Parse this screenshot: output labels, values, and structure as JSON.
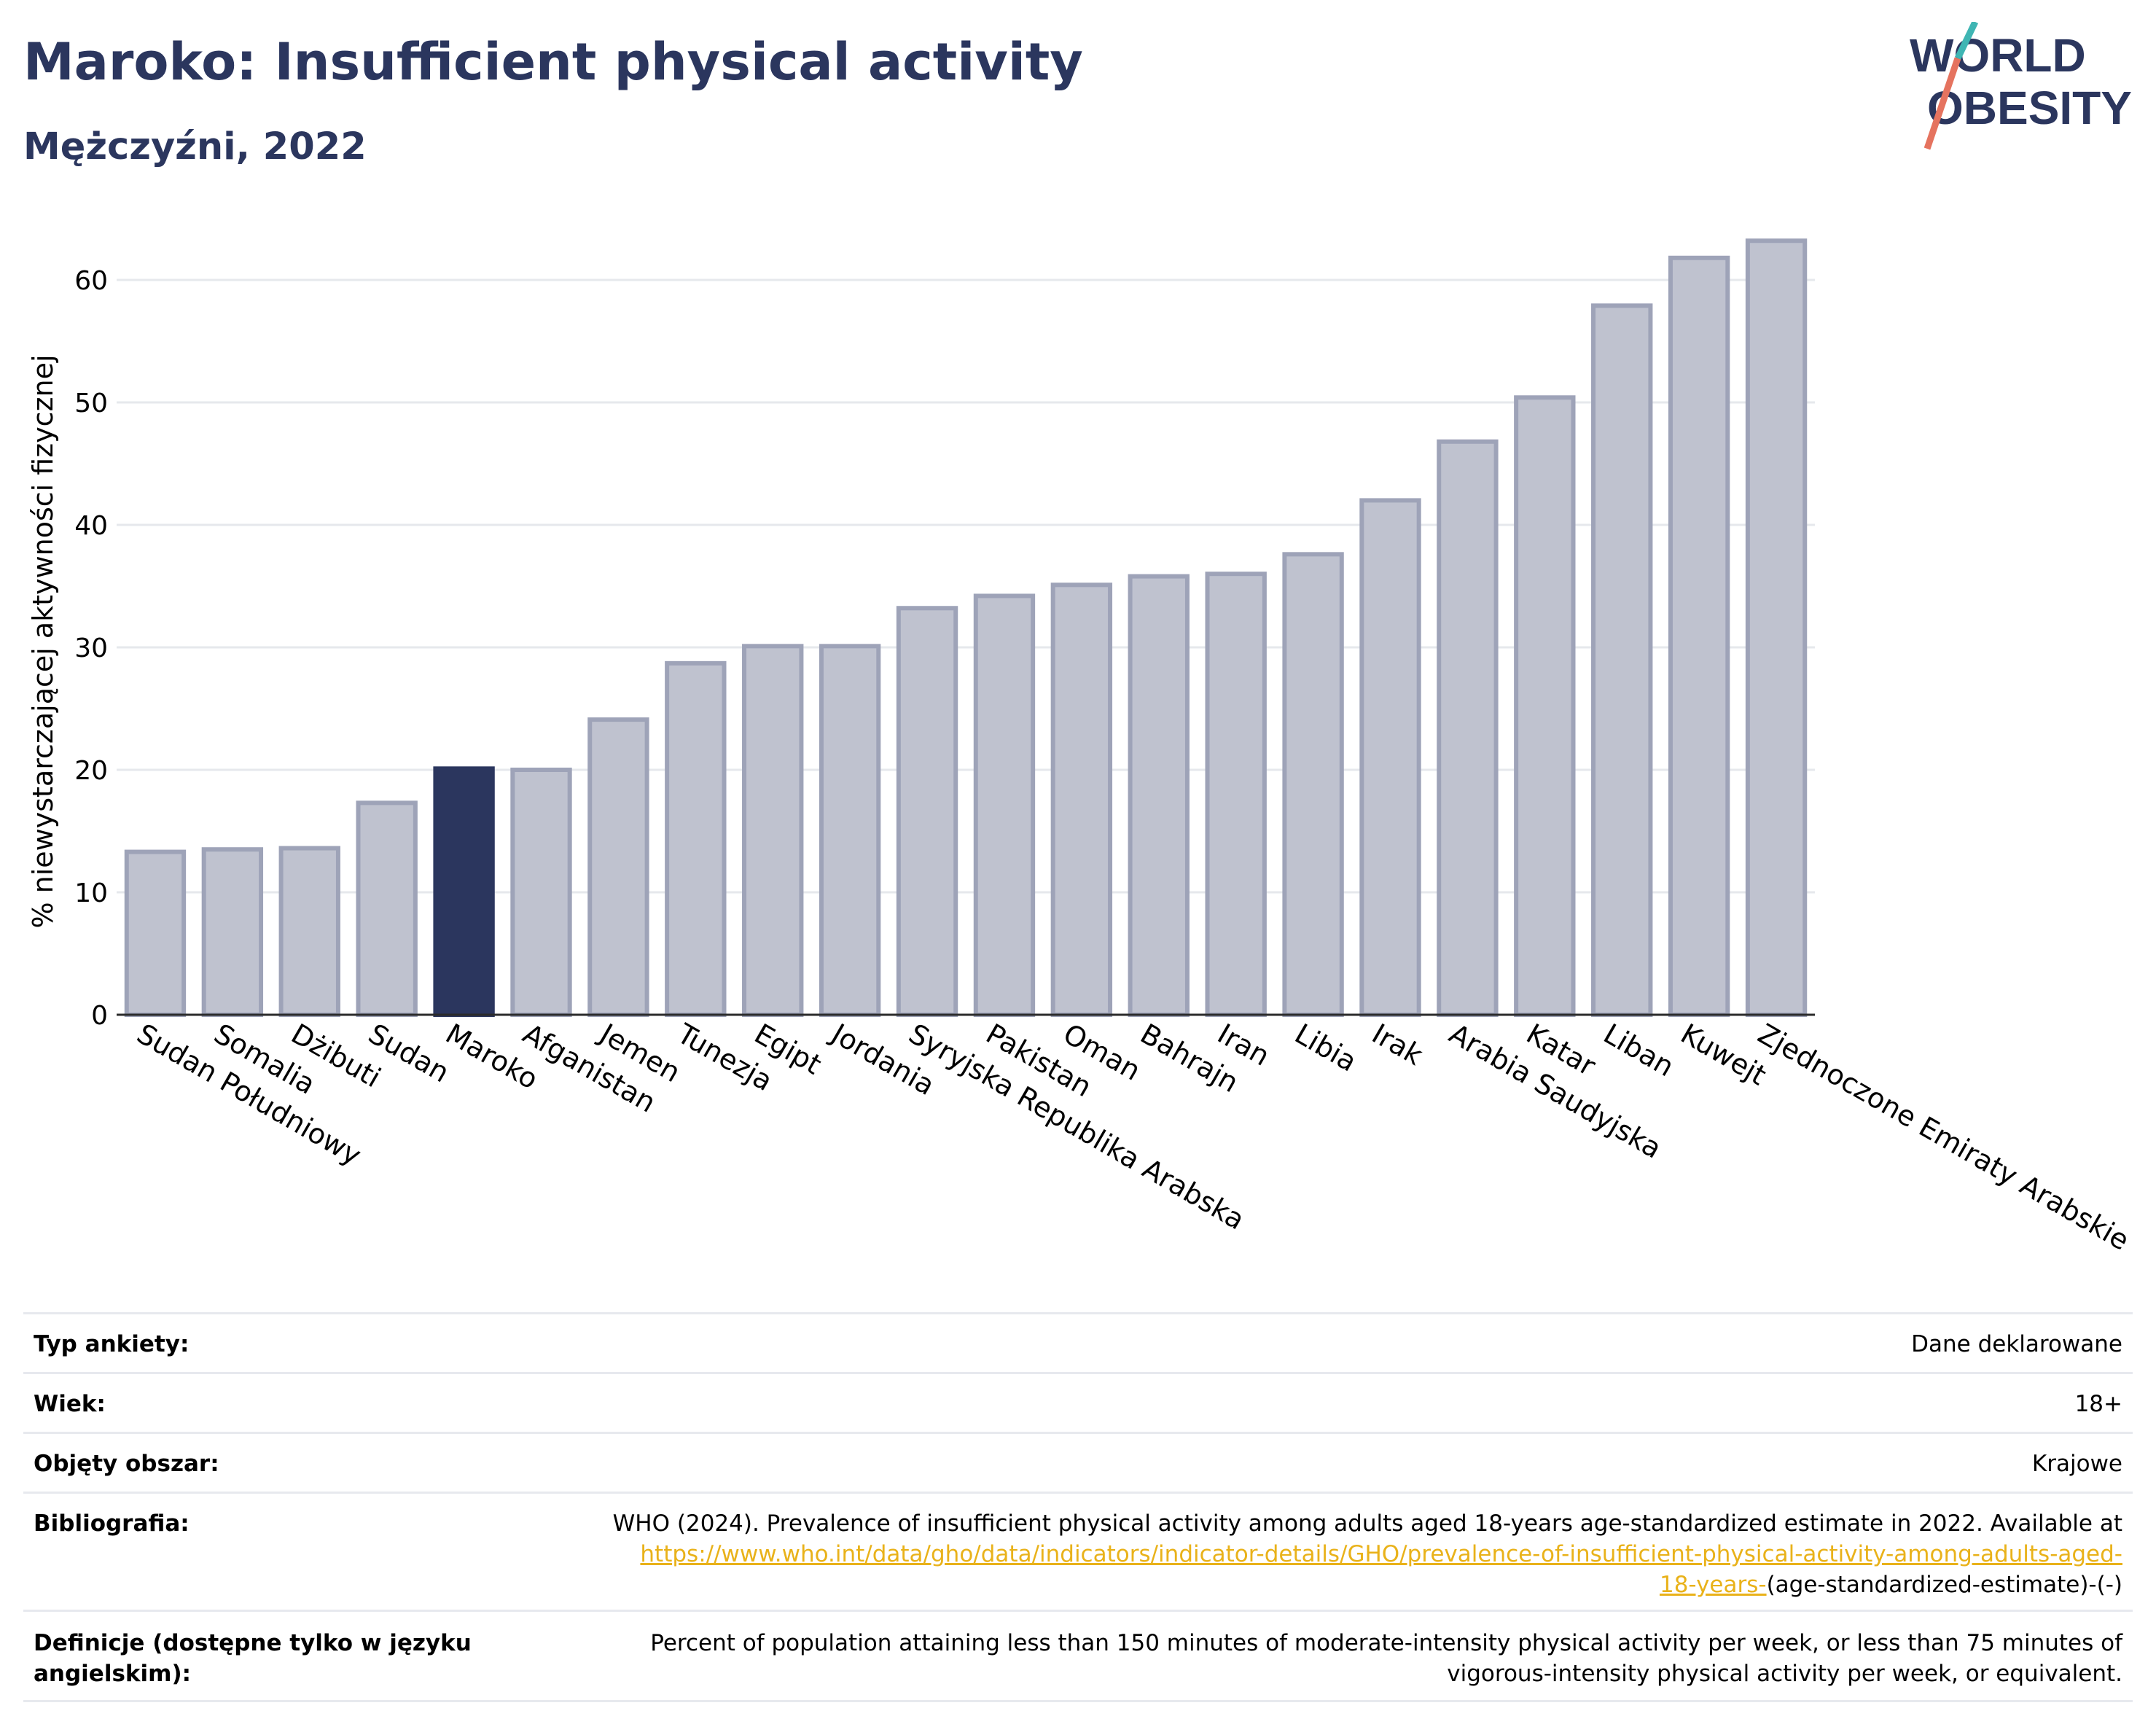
{
  "header": {
    "title": "Maroko: Insufficient physical activity",
    "subtitle": "Mężczyźni, 2022"
  },
  "logo": {
    "line1": "WORLD",
    "line2": "OBESITY"
  },
  "colors": {
    "brand": "#2b365e",
    "highlight_bar": "#2b365e",
    "other_bar": "#bfc2cf",
    "other_bar_border": "#9ea3b8",
    "link": "#e9b21a"
  },
  "chart_data": {
    "type": "bar",
    "ylabel": "% niewystarczającej aktywności fizycznej",
    "ylim": [
      0,
      65
    ],
    "yticks": [
      0,
      10,
      20,
      30,
      40,
      50,
      60
    ],
    "grid": true,
    "highlight": "Maroko",
    "categories": [
      "Sudan Południowy",
      "Somalia",
      "Dżibuti",
      "Sudan",
      "Maroko",
      "Afganistan",
      "Jemen",
      "Tunezja",
      "Egipt",
      "Jordania",
      "Syryjska Republika Arabska",
      "Pakistan",
      "Oman",
      "Bahrajn",
      "Iran",
      "Libia",
      "Irak",
      "Arabia Saudyjska",
      "Katar",
      "Liban",
      "Kuwejt",
      "Zjednoczone Emiraty Arabskie"
    ],
    "values": [
      13.3,
      13.5,
      13.6,
      17.3,
      20.1,
      20.0,
      24.1,
      28.7,
      30.1,
      30.1,
      33.2,
      34.2,
      35.1,
      35.8,
      36.0,
      37.6,
      42.0,
      46.8,
      50.4,
      57.9,
      61.8,
      63.2
    ]
  },
  "info_table": [
    {
      "label": "Typ ankiety:",
      "value": "Dane deklarowane"
    },
    {
      "label": "Wiek:",
      "value": "18+"
    },
    {
      "label": "Objęty obszar:",
      "value": "Krajowe"
    },
    {
      "label": "Bibliografia:",
      "value_line1": "WHO (2024). Prevalence of insufficient physical activity among adults aged 18-years age-standardized estimate in 2022. Available at",
      "link_line1": "https://www.who.int/data/gho/data/indicators/indicator-details/GHO/prevalence-of-insufficient-physical-activity-among-adults-aged-",
      "link_line2": "18-years-",
      "value_tail": "(age-standardized-estimate)-(-)"
    },
    {
      "label_line1": "Definicje (dostępne tylko w języku",
      "label_line2": "angielskim):",
      "value_line1": "Percent of population attaining less than 150 minutes of moderate-intensity physical activity per week, or less than 75 minutes of",
      "value_line2": "vigorous-intensity physical activity per week, or equivalent."
    }
  ]
}
